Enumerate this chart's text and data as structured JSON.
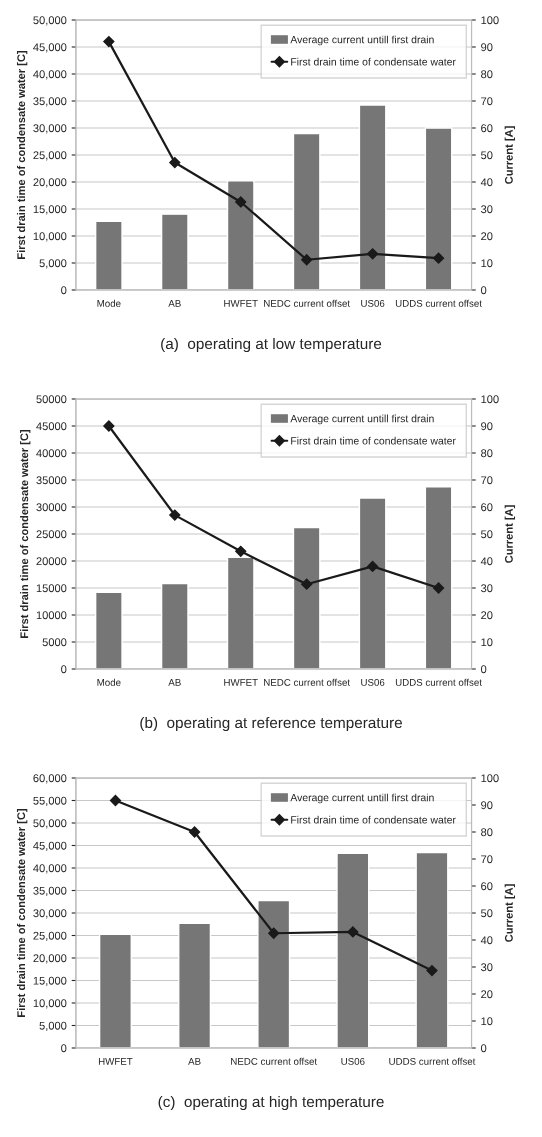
{
  "chart_data": [
    {
      "type": "bar",
      "title": "(a)  operating at low temperature",
      "ylabel": "First drain time of condensate water [C]",
      "y2label": "Current [A]",
      "categories": [
        "Mode",
        "AB",
        "HWFET",
        "NEDC current offset",
        "US06",
        "UDDS current offset"
      ],
      "series": [
        {
          "name": "Average current untill first drain",
          "axis": "y2",
          "color": "#767676",
          "values": [
            25.4,
            28.1,
            40.4,
            57.9,
            68.5,
            60.0
          ]
        },
        {
          "name": "First drain time of condensate water",
          "type": "line",
          "axis": "y",
          "color": "#1a1a1a",
          "marker": "diamond",
          "values": [
            46000,
            23600,
            16300,
            5600,
            6700,
            5900
          ]
        }
      ],
      "ylim": [
        0,
        50000
      ],
      "yticks": [
        {
          "value": 0,
          "label": "0"
        },
        {
          "value": 5000,
          "label": "5,000"
        },
        {
          "value": 10000,
          "label": "10,000"
        },
        {
          "value": 15000,
          "label": "15,000"
        },
        {
          "value": 20000,
          "label": "20,000"
        },
        {
          "value": 25000,
          "label": "25,000"
        },
        {
          "value": 30000,
          "label": "30,000"
        },
        {
          "value": 35000,
          "label": "35,000"
        },
        {
          "value": 40000,
          "label": "40,000"
        },
        {
          "value": 45000,
          "label": "45,000"
        },
        {
          "value": 50000,
          "label": "50,000"
        }
      ],
      "y2lim": [
        0,
        100
      ],
      "y2ticks": [
        0,
        10,
        20,
        30,
        40,
        50,
        60,
        70,
        80,
        90,
        100
      ],
      "grid": "y",
      "legend": "top right"
    },
    {
      "type": "bar",
      "title": "(b)  operating at reference temperature",
      "ylabel": "First drain time of condensate water [C]",
      "y2label": "Current [A]",
      "categories": [
        "Mode",
        "AB",
        "HWFET",
        "NEDC current offset",
        "US06",
        "UDDS current offset"
      ],
      "series": [
        {
          "name": "Average current untill first drain",
          "axis": "y2",
          "color": "#767676",
          "values": [
            28.4,
            31.6,
            41.4,
            52.4,
            63.3,
            67.5
          ]
        },
        {
          "name": "First drain time of condensate water",
          "type": "line",
          "axis": "y",
          "color": "#1a1a1a",
          "marker": "diamond",
          "values": [
            45000,
            28500,
            21800,
            15700,
            19000,
            15000
          ]
        }
      ],
      "ylim": [
        0,
        50000
      ],
      "yticks": [
        0,
        5000,
        10000,
        15000,
        20000,
        25000,
        30000,
        35000,
        40000,
        45000,
        50000
      ],
      "y2lim": [
        0,
        100
      ],
      "y2ticks": [
        0,
        10,
        20,
        30,
        40,
        50,
        60,
        70,
        80,
        90,
        100
      ],
      "grid": "y",
      "legend": "top right"
    },
    {
      "type": "bar",
      "title": "(c)  operating at high temperature",
      "ylabel": "First drain time of condensate water [C]",
      "y2label": "Current [A]",
      "categories": [
        "HWFET",
        "AB",
        "NEDC current offset",
        "US06",
        "UDDS current offset"
      ],
      "series": [
        {
          "name": "Average current untill first drain",
          "axis": "y2",
          "color": "#767676",
          "values": [
            42.1,
            46.2,
            54.6,
            72.1,
            72.4
          ]
        },
        {
          "name": "First drain time of condensate water",
          "type": "line",
          "axis": "y",
          "color": "#1a1a1a",
          "marker": "diamond",
          "values": [
            55000,
            48000,
            25500,
            25800,
            17200
          ]
        }
      ],
      "ylim": [
        0,
        60000
      ],
      "yticks": [
        {
          "value": 0,
          "label": "0"
        },
        {
          "value": 5000,
          "label": "5,000"
        },
        {
          "value": 10000,
          "label": "10,000"
        },
        {
          "value": 15000,
          "label": "15,000"
        },
        {
          "value": 20000,
          "label": "20,000"
        },
        {
          "value": 25000,
          "label": "25,000"
        },
        {
          "value": 30000,
          "label": "30,000"
        },
        {
          "value": 35000,
          "label": "35,000"
        },
        {
          "value": 40000,
          "label": "40,000"
        },
        {
          "value": 45000,
          "label": "45,000"
        },
        {
          "value": 50000,
          "label": "50,000"
        },
        {
          "value": 55000,
          "label": "55,000"
        },
        {
          "value": 60000,
          "label": "60,000"
        }
      ],
      "y2lim": [
        0,
        100
      ],
      "y2ticks": [
        0,
        10,
        20,
        30,
        40,
        50,
        60,
        70,
        80,
        90,
        100
      ],
      "grid": "y",
      "legend": "top right"
    }
  ]
}
